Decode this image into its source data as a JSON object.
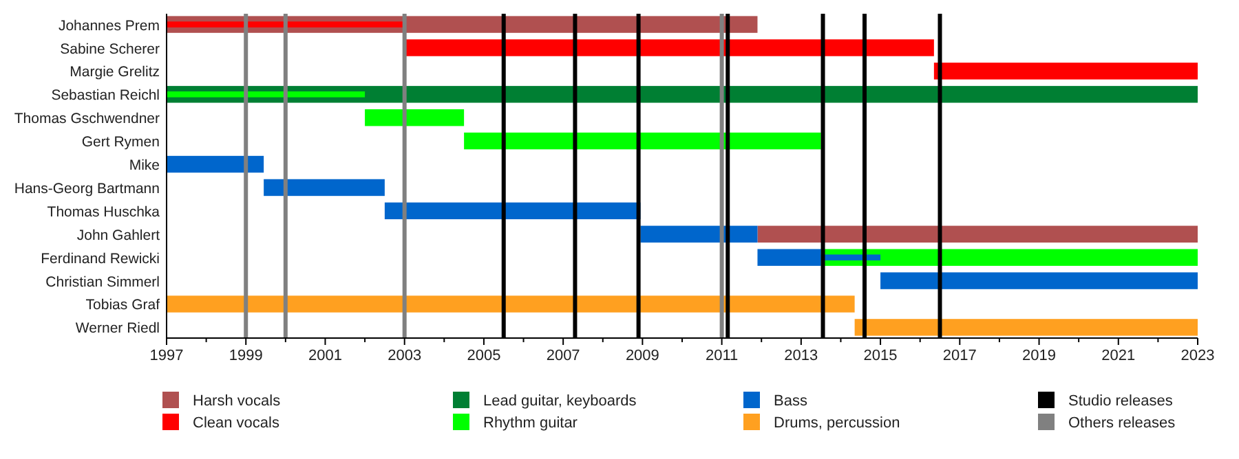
{
  "chart_data": {
    "type": "bar",
    "orientation": "horizontal",
    "legend": "bottom",
    "categories": [
      "Johannes Prem",
      "Sabine Scherer",
      "Margie Grelitz",
      "Sebastian Reichl",
      "Thomas Gschwendner",
      "Gert Rymen",
      "Mike",
      "Hans-Georg Bartmann",
      "Thomas Huschka",
      "John Gahlert",
      "Ferdinand Rewicki",
      "Christian Simmerl",
      "Tobias Graf",
      "Werner Riedl"
    ],
    "xlim": [
      1997,
      2023
    ],
    "xticks": [
      1997,
      {
        "value": 1998,
        "label": null
      },
      1999,
      {
        "value": 2000,
        "label": null
      },
      2001,
      {
        "value": 2002,
        "label": null
      },
      2003,
      {
        "value": 2004,
        "label": null
      },
      2005,
      {
        "value": 2006,
        "label": null
      },
      2007,
      {
        "value": 2008,
        "label": null
      },
      2009,
      {
        "value": 2010,
        "label": null
      },
      2011,
      {
        "value": 2012,
        "label": null
      },
      2013,
      {
        "value": 2014,
        "label": null
      },
      2015,
      {
        "value": 2016,
        "label": null
      },
      2017,
      {
        "value": 2018,
        "label": null
      },
      2019,
      {
        "value": 2020,
        "label": null
      },
      2021,
      {
        "value": 2022,
        "label": null
      },
      2023
    ],
    "series": [
      {
        "name": "Harsh vocals",
        "color": "#b05050",
        "base": [
          1997,
          null,
          null,
          null,
          null,
          null,
          null,
          null,
          null,
          2011.9,
          null,
          null,
          null,
          null
        ],
        "values": [
          14.9,
          null,
          null,
          null,
          null,
          null,
          null,
          null,
          null,
          11.1,
          null,
          null,
          null,
          null
        ]
      },
      {
        "name": "Clean vocals",
        "color": "#ff0000",
        "base": [
          null,
          2003,
          2016.35,
          null,
          null,
          null,
          null,
          null,
          null,
          null,
          null,
          null,
          null,
          null
        ],
        "values": [
          null,
          13.35,
          6.65,
          null,
          null,
          null,
          null,
          null,
          null,
          null,
          null,
          null,
          null,
          null
        ]
      },
      {
        "name": "Lead guitar, keyboards",
        "color": "#007f33",
        "base": [
          null,
          null,
          null,
          1997,
          null,
          null,
          null,
          null,
          null,
          null,
          null,
          null,
          null,
          null
        ],
        "values": [
          null,
          null,
          null,
          26,
          null,
          null,
          null,
          null,
          null,
          null,
          null,
          null,
          null,
          null
        ]
      },
      {
        "name": "Rhythm guitar",
        "color": "#00ff00",
        "base": [
          null,
          null,
          null,
          null,
          2002,
          2004.5,
          null,
          null,
          null,
          null,
          2013.5,
          null,
          null,
          null
        ],
        "values": [
          null,
          null,
          null,
          null,
          2.5,
          9,
          null,
          null,
          null,
          null,
          9.5,
          null,
          null,
          null
        ]
      },
      {
        "name": "Bass",
        "color": "#0066cc",
        "base": [
          null,
          null,
          null,
          null,
          null,
          null,
          1997,
          1999.45,
          2002.5,
          2008.95,
          2011.9,
          2015,
          null,
          null
        ],
        "values": [
          null,
          null,
          null,
          null,
          null,
          null,
          2.45,
          3.05,
          6.45,
          2.95,
          1.6,
          8,
          null,
          null
        ]
      },
      {
        "name": "Drums, percussion",
        "color": "#ffa020",
        "base": [
          null,
          null,
          null,
          null,
          null,
          null,
          null,
          null,
          null,
          null,
          null,
          null,
          1997,
          2014.35
        ],
        "values": [
          null,
          null,
          null,
          null,
          null,
          null,
          null,
          null,
          null,
          null,
          null,
          null,
          17.35,
          8.65
        ]
      },
      {
        "color": "#ff0000",
        "base": [
          1997,
          null,
          null,
          null,
          null,
          null,
          null,
          null,
          null,
          null,
          null,
          null,
          null,
          null
        ],
        "values": [
          6,
          null,
          null,
          null,
          null,
          null,
          null,
          null,
          null,
          null,
          null,
          null,
          null,
          null
        ]
      },
      {
        "color": "#00ff00",
        "base": [
          null,
          null,
          null,
          1997,
          null,
          null,
          null,
          null,
          null,
          null,
          null,
          null,
          null,
          null
        ],
        "values": [
          null,
          null,
          null,
          5,
          null,
          null,
          null,
          null,
          null,
          null,
          null,
          null,
          null,
          null
        ]
      },
      {
        "color": "#0066cc",
        "base": [
          null,
          null,
          null,
          null,
          null,
          null,
          null,
          null,
          null,
          null,
          2013.5,
          null,
          null,
          null
        ],
        "values": [
          null,
          null,
          null,
          null,
          null,
          null,
          null,
          null,
          null,
          null,
          1.5,
          null,
          null,
          null
        ]
      }
    ],
    "ref_lines": [
      {
        "axis": "x",
        "value": 2005.5,
        "label": "Studio releases",
        "color": "#000000"
      },
      {
        "axis": "x",
        "value": 2007.3,
        "color": "#000000"
      },
      {
        "axis": "x",
        "value": 2008.9,
        "color": "#000000"
      },
      {
        "axis": "x",
        "value": 2011.15,
        "color": "#000000"
      },
      {
        "axis": "x",
        "value": 2013.55,
        "color": "#000000"
      },
      {
        "axis": "x",
        "value": 2014.6,
        "color": "#000000"
      },
      {
        "axis": "x",
        "value": 2016.5,
        "color": "#000000"
      },
      {
        "axis": "x",
        "value": 1999,
        "label": "Others releases",
        "color": "#808080"
      },
      {
        "axis": "x",
        "value": 2000,
        "color": "#808080"
      },
      {
        "axis": "x",
        "value": 2003,
        "color": "#808080"
      },
      {
        "axis": "x",
        "value": 2011,
        "color": "#808080"
      }
    ]
  }
}
